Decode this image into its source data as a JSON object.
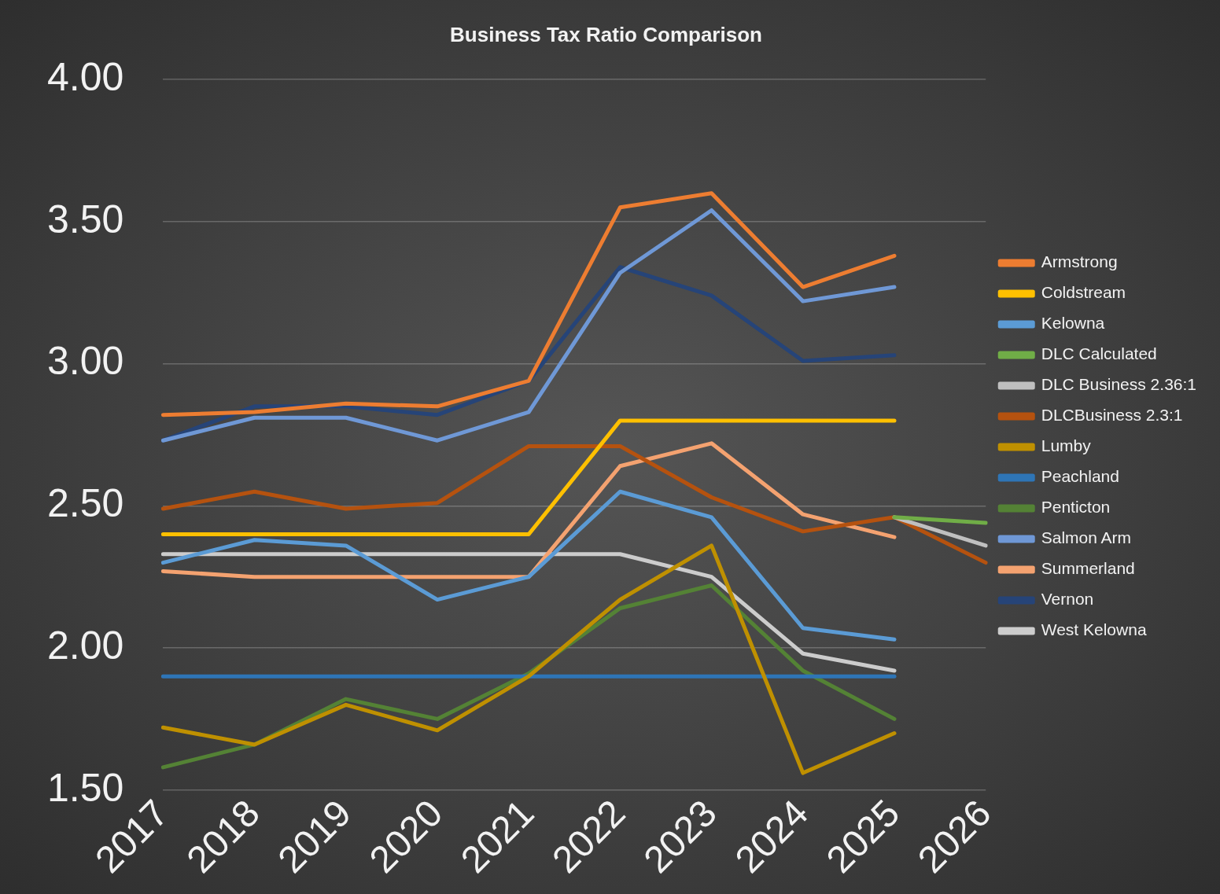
{
  "chart_data": {
    "type": "line",
    "title": "Business Tax Ratio Comparison",
    "categories": [
      "2017",
      "2018",
      "2019",
      "2020",
      "2021",
      "2022",
      "2023",
      "2024",
      "2025",
      "2026"
    ],
    "ylim": [
      1.5,
      4
    ],
    "yticks": [
      {
        "value": 1.5,
        "label": "1.50"
      },
      {
        "value": 2,
        "label": "2.00"
      },
      {
        "value": 2.5,
        "label": "2.50"
      },
      {
        "value": 3,
        "label": "3.00"
      },
      {
        "value": 3.5,
        "label": "3.50"
      },
      {
        "value": 4,
        "label": "4.00"
      }
    ],
    "grid": "y",
    "legend": "right",
    "marker": "none",
    "line_style": "solid",
    "series": [
      {
        "name": "Armstrong",
        "color": "#ed7d31",
        "values": [
          2.82,
          2.83,
          2.86,
          2.85,
          2.94,
          3.55,
          3.6,
          3.27,
          3.38,
          null
        ]
      },
      {
        "name": "Coldstream",
        "color": "#ffc000",
        "values": [
          2.4,
          2.4,
          2.4,
          2.4,
          2.4,
          2.8,
          2.8,
          2.8,
          2.8,
          null
        ]
      },
      {
        "name": "Kelowna",
        "color": "#5b9bd5",
        "values": [
          2.3,
          2.38,
          2.36,
          2.17,
          2.25,
          2.55,
          2.46,
          2.07,
          2.03,
          null
        ]
      },
      {
        "name": "DLC Calculated",
        "color": "#70ad47",
        "values": [
          null,
          null,
          null,
          null,
          null,
          null,
          null,
          null,
          2.46,
          2.44
        ]
      },
      {
        "name": "DLC Business 2.36:1",
        "color": "#bfbfbf",
        "values": [
          null,
          null,
          null,
          null,
          null,
          null,
          null,
          null,
          2.46,
          2.36
        ]
      },
      {
        "name": "DLCBusiness 2.3:1",
        "color": "#b5520f",
        "values": [
          2.49,
          2.55,
          2.49,
          2.51,
          2.71,
          2.71,
          2.53,
          2.41,
          2.46,
          2.3
        ]
      },
      {
        "name": "Lumby",
        "color": "#bf9000",
        "values": [
          1.72,
          1.66,
          1.8,
          1.71,
          1.9,
          2.17,
          2.36,
          1.56,
          1.7,
          null
        ]
      },
      {
        "name": "Peachland",
        "color": "#2e75b6",
        "values": [
          1.9,
          1.9,
          1.9,
          1.9,
          1.9,
          1.9,
          1.9,
          1.9,
          1.9,
          null
        ]
      },
      {
        "name": "Penticton",
        "color": "#548235",
        "values": [
          1.58,
          1.66,
          1.82,
          1.75,
          1.91,
          2.14,
          2.22,
          1.92,
          1.75,
          null
        ]
      },
      {
        "name": "Salmon Arm",
        "color": "#6f98d6",
        "values": [
          2.73,
          2.81,
          2.81,
          2.73,
          2.83,
          3.32,
          3.54,
          3.22,
          3.27,
          null
        ]
      },
      {
        "name": "Summerland",
        "color": "#f4a270",
        "values": [
          2.27,
          2.25,
          2.25,
          2.25,
          2.25,
          2.64,
          2.72,
          2.47,
          2.39,
          null
        ]
      },
      {
        "name": "Vernon",
        "color": "#264478",
        "values": [
          2.73,
          2.85,
          2.85,
          2.82,
          2.94,
          3.34,
          3.24,
          3.01,
          3.03,
          null
        ]
      },
      {
        "name": "West Kelowna",
        "color": "#cccccc",
        "values": [
          2.33,
          2.33,
          2.33,
          2.33,
          2.33,
          2.33,
          2.25,
          1.98,
          1.92,
          null
        ]
      }
    ]
  }
}
